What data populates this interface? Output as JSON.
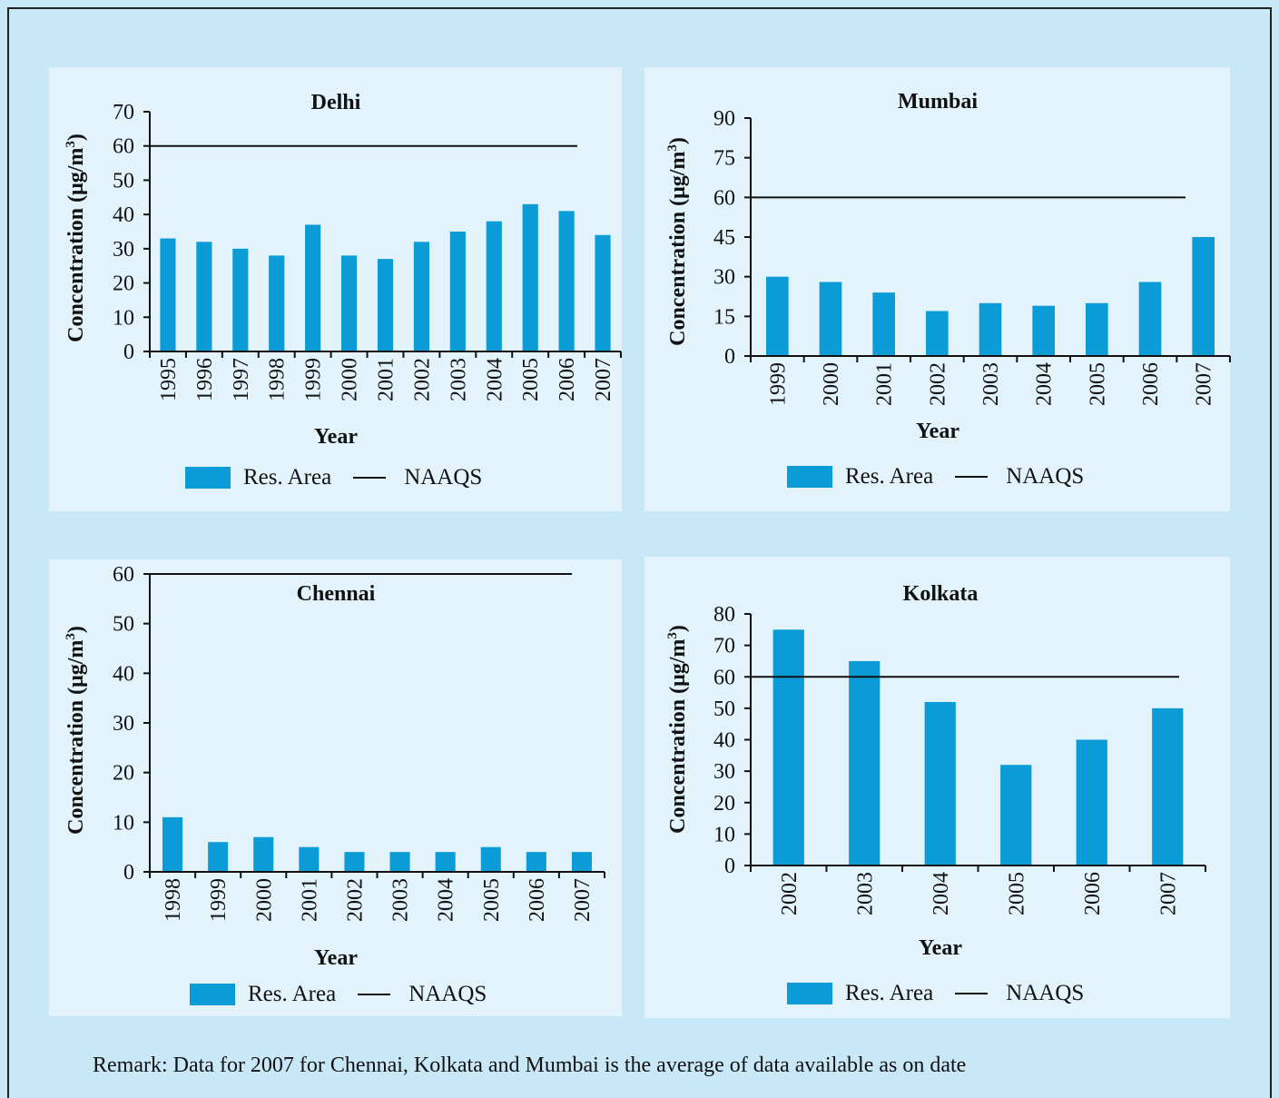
{
  "legend": {
    "bar_label": "Res. Area",
    "line_label": "NAAQS"
  },
  "remark": "Remark: Data for 2007 for Chennai, Kolkata and Mumbai is the average of data available as on date",
  "colors": {
    "bar": "#0b9bd7",
    "panel": "#e2f3fb",
    "background": "#c8e8f8",
    "line": "#111111"
  },
  "chart_data": [
    {
      "type": "bar",
      "title": "Delhi",
      "xlabel": "Year",
      "ylabel": "Concentration (μg/m3)",
      "ylim": [
        0,
        70
      ],
      "yticks": [
        0,
        10,
        20,
        30,
        40,
        50,
        60,
        70
      ],
      "categories": [
        "1995",
        "1996",
        "1997",
        "1998",
        "1999",
        "2000",
        "2001",
        "2002",
        "2003",
        "2004",
        "2005",
        "2006",
        "2007"
      ],
      "series": [
        {
          "name": "Res. Area",
          "values": [
            33,
            32,
            30,
            28,
            37,
            28,
            27,
            32,
            35,
            38,
            43,
            41,
            34
          ]
        }
      ],
      "reference_line": {
        "name": "NAAQS",
        "value": 60
      }
    },
    {
      "type": "bar",
      "title": "Mumbai",
      "xlabel": "Year",
      "ylabel": "Concentration (μg/m3)",
      "ylim": [
        0,
        90
      ],
      "yticks": [
        0,
        15,
        30,
        45,
        60,
        75,
        90
      ],
      "categories": [
        "1999",
        "2000",
        "2001",
        "2002",
        "2003",
        "2004",
        "2005",
        "2006",
        "2007"
      ],
      "series": [
        {
          "name": "Res. Area",
          "values": [
            30,
            28,
            24,
            17,
            20,
            19,
            20,
            28,
            45
          ]
        }
      ],
      "reference_line": {
        "name": "NAAQS",
        "value": 60
      }
    },
    {
      "type": "bar",
      "title": "Chennai",
      "xlabel": "Year",
      "ylabel": "Concentration (μg/m3)",
      "ylim": [
        0,
        60
      ],
      "yticks": [
        0,
        10,
        20,
        30,
        40,
        50,
        60
      ],
      "categories": [
        "1998",
        "1999",
        "2000",
        "2001",
        "2002",
        "2003",
        "2004",
        "2005",
        "2006",
        "2007"
      ],
      "series": [
        {
          "name": "Res. Area",
          "values": [
            11,
            6,
            7,
            5,
            4,
            4,
            4,
            5,
            4,
            4
          ]
        }
      ],
      "reference_line": {
        "name": "NAAQS",
        "value": 60
      }
    },
    {
      "type": "bar",
      "title": "Kolkata",
      "xlabel": "Year",
      "ylabel": "Concentration (μg/m3)",
      "ylim": [
        0,
        80
      ],
      "yticks": [
        0,
        10,
        20,
        30,
        40,
        50,
        60,
        70,
        80
      ],
      "categories": [
        "2002",
        "2003",
        "2004",
        "2005",
        "2006",
        "2007"
      ],
      "series": [
        {
          "name": "Res. Area",
          "values": [
            75,
            65,
            52,
            32,
            40,
            50
          ]
        }
      ],
      "reference_line": {
        "name": "NAAQS",
        "value": 60
      }
    }
  ]
}
